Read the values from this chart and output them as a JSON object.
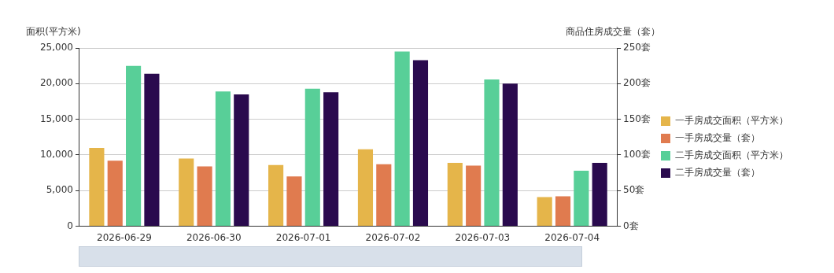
{
  "chart_data": {
    "type": "bar",
    "ylabel": "面积(平方米)",
    "y2label": "商品住房成交量（套）",
    "categories": [
      "2026-06-29",
      "2026-06-30",
      "2026-07-01",
      "2026-07-02",
      "2026-07-03",
      "2026-07-04"
    ],
    "series": [
      {
        "name": "一手房成交面积（平方米）",
        "color": "#e5b54a",
        "values": [
          11000,
          9500,
          8600,
          10800,
          8900,
          4100
        ]
      },
      {
        "name": "一手房成交量（套）",
        "color": "#e07b4f",
        "axis": "y2",
        "values": [
          92,
          84,
          70,
          87,
          85,
          42
        ]
      },
      {
        "name": "二手房成交面积（平方米）",
        "color": "#58cf98",
        "values": [
          22500,
          18900,
          19300,
          24500,
          20600,
          7800
        ]
      },
      {
        "name": "二手房成交量（套）",
        "color": "#2a0a4e",
        "axis": "y2",
        "values": [
          214,
          185,
          188,
          233,
          200,
          89
        ]
      }
    ],
    "ylim": [
      0,
      25000
    ],
    "yticks": [
      0,
      {
        "value": 5000,
        "label": "5,000"
      },
      {
        "value": 10000,
        "label": "10,000"
      },
      {
        "value": 15000,
        "label": "15,000"
      },
      {
        "value": 20000,
        "label": "20,000"
      },
      {
        "value": 25000,
        "label": "25,000"
      }
    ],
    "y2lim": [
      0,
      250
    ],
    "y2ticks": [
      {
        "value": 0,
        "label": "0套"
      },
      {
        "value": 50,
        "label": "50套"
      },
      {
        "value": 100,
        "label": "100套"
      },
      {
        "value": 150,
        "label": "150套"
      },
      {
        "value": 200,
        "label": "200套"
      },
      {
        "value": 250,
        "label": "250套"
      }
    ],
    "grid": "y",
    "legend": "right"
  }
}
